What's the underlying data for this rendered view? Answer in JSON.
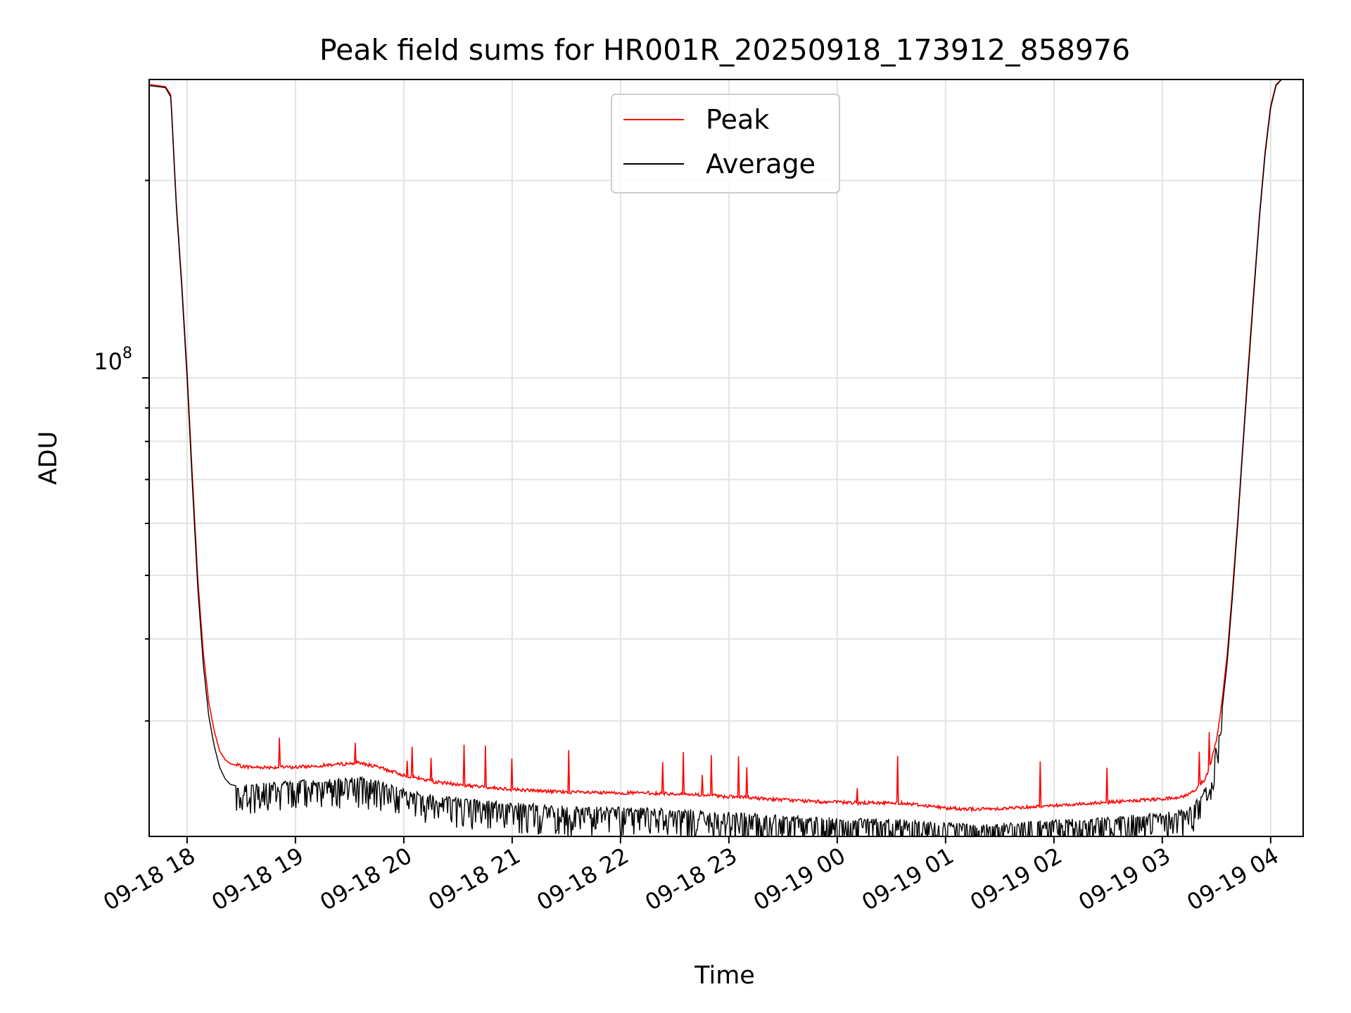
{
  "chart_data": {
    "type": "line",
    "title": "Peak field sums for HR001R_20250918_173912_858976",
    "xlabel": "Time",
    "ylabel": "ADU",
    "yscale": "log",
    "ylim": [
      20000000,
      285000000
    ],
    "xlim_hours": [
      -0.35,
      10.3
    ],
    "grid": true,
    "legend_position": "upper-center",
    "x_tick_labels": [
      "09-18 18",
      "09-18 19",
      "09-18 20",
      "09-18 21",
      "09-18 22",
      "09-18 23",
      "09-19 00",
      "09-19 01",
      "09-19 02",
      "09-19 03",
      "09-19 04"
    ],
    "x_tick_hours": [
      0,
      1,
      2,
      3,
      4,
      5,
      6,
      7,
      8,
      9,
      10
    ],
    "y_tick_label": "10",
    "y_tick_exponent": "8",
    "y_major_tick": 100000000,
    "y_minor_ticks": [
      30000000,
      40000000,
      50000000,
      60000000,
      70000000,
      80000000,
      90000000,
      200000000
    ],
    "series": [
      {
        "name": "Peak",
        "color": "#ff0000",
        "x_hours": [
          -0.35,
          -0.2,
          -0.15,
          -0.1,
          -0.05,
          0.0,
          0.05,
          0.1,
          0.15,
          0.2,
          0.25,
          0.3,
          0.35,
          0.4,
          0.5,
          0.6,
          0.8,
          1.0,
          1.3,
          1.6,
          1.8,
          2.0,
          2.3,
          2.6,
          3.0,
          3.4,
          3.8,
          4.2,
          4.6,
          5.0,
          5.4,
          5.8,
          6.2,
          6.6,
          7.0,
          7.3,
          7.6,
          8.0,
          8.4,
          8.8,
          9.0,
          9.2,
          9.3,
          9.4,
          9.45,
          9.5,
          9.55,
          9.6,
          9.65,
          9.7,
          9.75,
          9.8,
          9.85,
          9.9,
          9.95,
          10.0,
          10.05,
          10.1,
          10.15,
          10.2,
          10.3
        ],
        "values": [
          280000000,
          278000000,
          270000000,
          185000000,
          140000000,
          102000000,
          70000000,
          49000000,
          38000000,
          32000000,
          29000000,
          27000000,
          26200000,
          25800000,
          25600000,
          25500000,
          25500000,
          25500000,
          25700000,
          25900000,
          25400000,
          24800000,
          24200000,
          23900000,
          23600000,
          23400000,
          23300000,
          23300000,
          23200000,
          23000000,
          22800000,
          22600000,
          22500000,
          22500000,
          22100000,
          22000000,
          22100000,
          22300000,
          22500000,
          22700000,
          22800000,
          23000000,
          23500000,
          24500000,
          26000000,
          28000000,
          32000000,
          38000000,
          48000000,
          62000000,
          82000000,
          108000000,
          140000000,
          180000000,
          222000000,
          260000000,
          280000000,
          285000000,
          285000000,
          285000000,
          285000000
        ]
      },
      {
        "name": "Average",
        "color": "#000000",
        "x_hours": [
          -0.35,
          -0.2,
          -0.15,
          -0.1,
          -0.05,
          0.0,
          0.05,
          0.1,
          0.15,
          0.2,
          0.25,
          0.3,
          0.35,
          0.4,
          0.5,
          0.6,
          0.8,
          1.0,
          1.3,
          1.6,
          1.8,
          2.0,
          2.3,
          2.6,
          3.0,
          3.4,
          3.8,
          4.2,
          4.6,
          5.0,
          5.4,
          5.8,
          6.2,
          6.6,
          7.0,
          7.3,
          7.6,
          8.0,
          8.4,
          8.8,
          9.0,
          9.2,
          9.3,
          9.4,
          9.45,
          9.5,
          9.55,
          9.6,
          9.65,
          9.7,
          9.75,
          9.8,
          9.85,
          9.9,
          9.95,
          10.0,
          10.05,
          10.1,
          10.15,
          10.2,
          10.3
        ],
        "values": [
          279000000,
          277000000,
          268000000,
          183000000,
          138000000,
          100000000,
          68000000,
          47500000,
          36500000,
          30500000,
          27500000,
          25500000,
          24500000,
          24000000,
          23800000,
          23800000,
          23900000,
          24000000,
          24100000,
          24300000,
          23900000,
          23300000,
          22800000,
          22500000,
          22200000,
          22000000,
          21900000,
          21800000,
          21700000,
          21500000,
          21300000,
          21100000,
          21000000,
          21000000,
          20700000,
          20600000,
          20700000,
          20900000,
          21100000,
          21300000,
          21400000,
          21700000,
          22200000,
          23400000,
          25000000,
          27200000,
          31000000,
          37000000,
          47000000,
          61000000,
          81000000,
          106000000,
          138000000,
          178000000,
          220000000,
          258000000,
          279000000,
          285000000,
          285000000,
          285000000,
          285000000
        ]
      }
    ]
  }
}
